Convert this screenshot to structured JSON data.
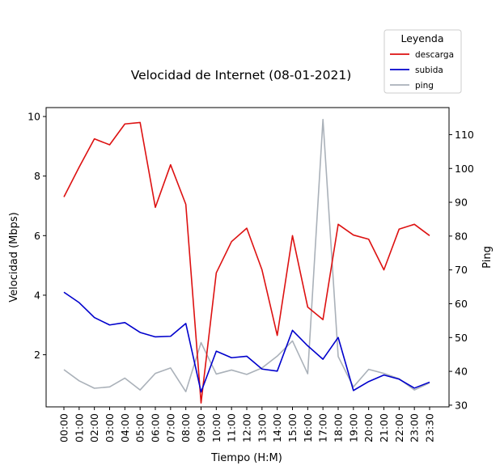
{
  "chart_data": {
    "type": "line",
    "title": "Velocidad de Internet (08-01-2021)",
    "xlabel": "Tiempo (H:M)",
    "ylabel": "Velocidad (Mbps)",
    "y2label": "Ping",
    "ylim": [
      0.25,
      10.3
    ],
    "y2lim": [
      29.5,
      118
    ],
    "yticks": [
      2,
      4,
      6,
      8,
      10
    ],
    "y2ticks": [
      30,
      40,
      50,
      60,
      70,
      80,
      90,
      100,
      110
    ],
    "grid": false,
    "legend": {
      "title": "Leyenda",
      "position": "top-right, outside plot"
    },
    "x": [
      "00:00",
      "01:00",
      "02:00",
      "03:00",
      "04:00",
      "05:00",
      "06:00",
      "07:00",
      "08:00",
      "09:00",
      "10:00",
      "11:00",
      "12:00",
      "13:00",
      "14:00",
      "15:00",
      "16:00",
      "17:00",
      "18:00",
      "19:00",
      "20:00",
      "21:00",
      "22:00",
      "23:00",
      "23:30"
    ],
    "series": [
      {
        "name": "descarga",
        "axis": "left",
        "color": "#dd1111",
        "values": [
          7.3,
          8.3,
          9.25,
          9.05,
          9.75,
          9.8,
          6.95,
          8.38,
          7.05,
          0.38,
          4.75,
          5.8,
          6.25,
          4.85,
          2.65,
          6.0,
          3.6,
          3.18,
          6.38,
          6.02,
          5.88,
          4.85,
          6.22,
          6.38,
          6.0
        ]
      },
      {
        "name": "subida",
        "axis": "left",
        "color": "#0000cc",
        "values": [
          4.1,
          3.75,
          3.25,
          3.0,
          3.08,
          2.75,
          2.6,
          2.62,
          3.05,
          0.75,
          2.12,
          1.9,
          1.95,
          1.52,
          1.45,
          2.82,
          2.3,
          1.85,
          2.58,
          0.8,
          1.1,
          1.32,
          1.18,
          0.88,
          1.08
        ]
      },
      {
        "name": "ping",
        "axis": "right",
        "color": "#aab1b9",
        "values": [
          40.5,
          37.2,
          35.0,
          35.4,
          38.0,
          34.5,
          39.4,
          41.0,
          34.0,
          48.5,
          39.2,
          40.4,
          39.1,
          41.0,
          44.5,
          49.0,
          39.3,
          114.5,
          44.4,
          35.4,
          40.6,
          39.4,
          37.8,
          34.5,
          36.6
        ]
      }
    ]
  }
}
